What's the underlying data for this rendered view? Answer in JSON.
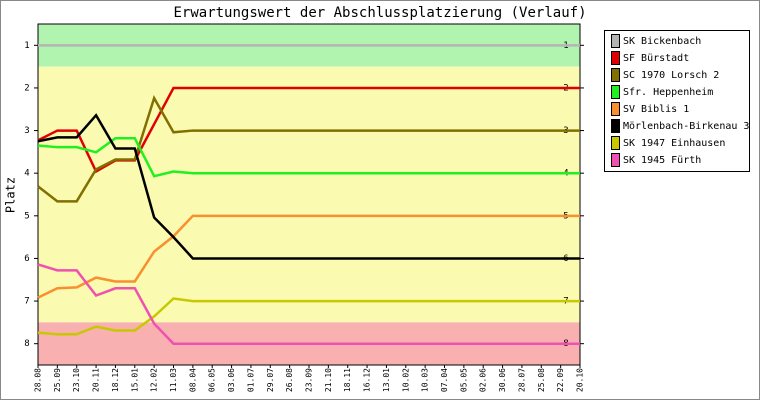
{
  "chart_data": {
    "type": "line",
    "title": "Erwartungswert der Abschlussplatzierung (Verlauf)",
    "y_label": "Platz",
    "categories": [
      "28.08",
      "25.09",
      "23.10",
      "20.11",
      "18.12",
      "15.01",
      "12.02",
      "11.03",
      "08.04",
      "06.05",
      "03.06",
      "01.07",
      "29.07",
      "26.08",
      "23.09",
      "21.10",
      "18.11",
      "16.12",
      "13.01",
      "10.02",
      "10.03",
      "07.04",
      "05.05",
      "02.06",
      "30.06",
      "28.07",
      "25.08",
      "22.09",
      "20.10"
    ],
    "series": [
      {
        "name": "SK Bickenbach",
        "color": "#b4b4b4",
        "values": [
          1,
          1,
          1,
          1,
          1,
          1,
          1,
          1,
          1,
          1,
          1,
          1,
          1,
          1,
          1,
          1,
          1,
          1,
          1,
          1,
          1,
          1,
          1,
          1,
          1,
          1,
          1,
          1,
          1
        ]
      },
      {
        "name": "SF Bürstadt",
        "color": "#e00000",
        "values": [
          3.23,
          3.0,
          3.0,
          3.96,
          3.7,
          3.7,
          2.85,
          2,
          2,
          2,
          2,
          2,
          2,
          2,
          2,
          2,
          2,
          2,
          2,
          2,
          2,
          2,
          2,
          2,
          2,
          2,
          2,
          2,
          2
        ]
      },
      {
        "name": "SC 1970 Lorsch 2",
        "color": "#807000",
        "values": [
          4.31,
          4.66,
          4.66,
          3.91,
          3.68,
          3.68,
          2.24,
          3.04,
          3,
          3,
          3,
          3,
          3,
          3,
          3,
          3,
          3,
          3,
          3,
          3,
          3,
          3,
          3,
          3,
          3,
          3,
          3,
          3,
          3
        ]
      },
      {
        "name": "Sfr. Heppenheim",
        "color": "#20f020",
        "values": [
          3.35,
          3.39,
          3.39,
          3.51,
          3.18,
          3.18,
          4.07,
          3.96,
          4,
          4,
          4,
          4,
          4,
          4,
          4,
          4,
          4,
          4,
          4,
          4,
          4,
          4,
          4,
          4,
          4,
          4,
          4,
          4,
          4
        ]
      },
      {
        "name": "SV Biblis 1",
        "color": "#f89030",
        "values": [
          6.92,
          6.7,
          6.68,
          6.45,
          6.54,
          6.54,
          5.84,
          5.48,
          5,
          5,
          5,
          5,
          5,
          5,
          5,
          5,
          5,
          5,
          5,
          5,
          5,
          5,
          5,
          5,
          5,
          5,
          5,
          5,
          5
        ]
      },
      {
        "name": "Mörlenbach-Birkenau 3",
        "color": "#000000",
        "values": [
          3.25,
          3.16,
          3.16,
          2.64,
          3.42,
          3.42,
          5.04,
          5.5,
          6,
          6,
          6,
          6,
          6,
          6,
          6,
          6,
          6,
          6,
          6,
          6,
          6,
          6,
          6,
          6,
          6,
          6,
          6,
          6,
          6
        ]
      },
      {
        "name": "SK 1947 Einhausen",
        "color": "#c8c800",
        "values": [
          7.74,
          7.78,
          7.78,
          7.6,
          7.69,
          7.69,
          7.36,
          6.94,
          7,
          7,
          7,
          7,
          7,
          7,
          7,
          7,
          7,
          7,
          7,
          7,
          7,
          7,
          7,
          7,
          7,
          7,
          7,
          7,
          7
        ]
      },
      {
        "name": "SK 1945 Fürth",
        "color": "#f050b0",
        "values": [
          6.14,
          6.28,
          6.28,
          6.87,
          6.7,
          6.7,
          7.53,
          8,
          8,
          8,
          8,
          8,
          8,
          8,
          8,
          8,
          8,
          8,
          8,
          8,
          8,
          8,
          8,
          8,
          8,
          8,
          8,
          8,
          8
        ]
      }
    ],
    "ylim": [
      0.5,
      8.5
    ],
    "y_reversed": true,
    "yticks": [
      1,
      2,
      3,
      4,
      5,
      6,
      7,
      8
    ],
    "bands": [
      {
        "from": 0.5,
        "to": 1.5,
        "color": "#b0f4b0"
      },
      {
        "from": 1.5,
        "to": 7.5,
        "color": "#fafab0"
      },
      {
        "from": 7.5,
        "to": 8.5,
        "color": "#f8b0b0"
      }
    ],
    "legend": "top-right"
  }
}
